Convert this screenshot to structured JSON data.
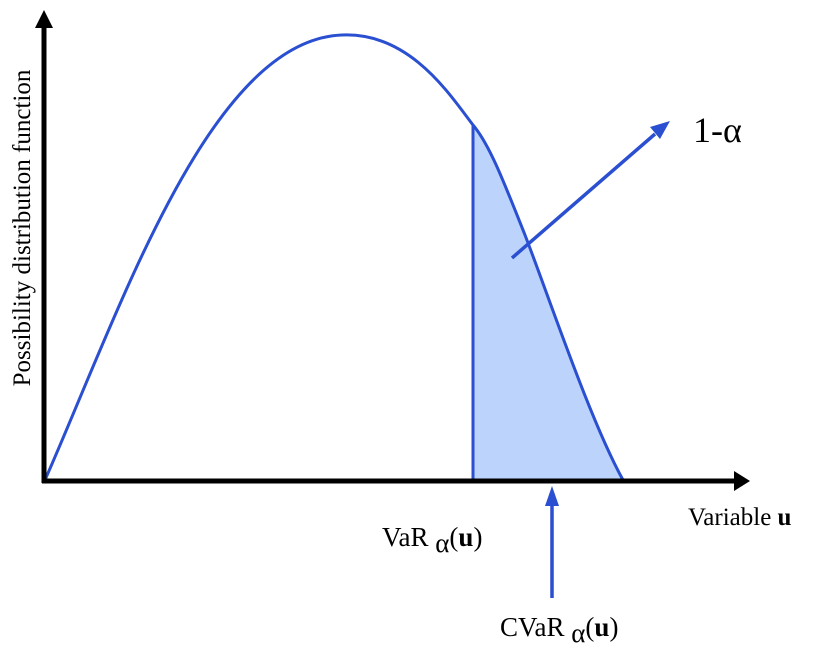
{
  "colors": {
    "curve": "#2a4fd1",
    "fill": "#bcd3fb",
    "axis": "#000000",
    "arrow": "#2a4fd1"
  },
  "axes": {
    "y_label": "Possibility distribution function",
    "x_label_prefix": "Variable ",
    "x_label_bold": "u"
  },
  "annotations": {
    "tail_label": "1-α",
    "var_prefix": "VaR ",
    "var_sub": "α",
    "var_open": "(",
    "var_arg": "u",
    "var_close": ")",
    "cvar_prefix": "CVaR ",
    "cvar_sub": "α",
    "cvar_open": "(",
    "cvar_arg": "u",
    "cvar_close": ")"
  }
}
